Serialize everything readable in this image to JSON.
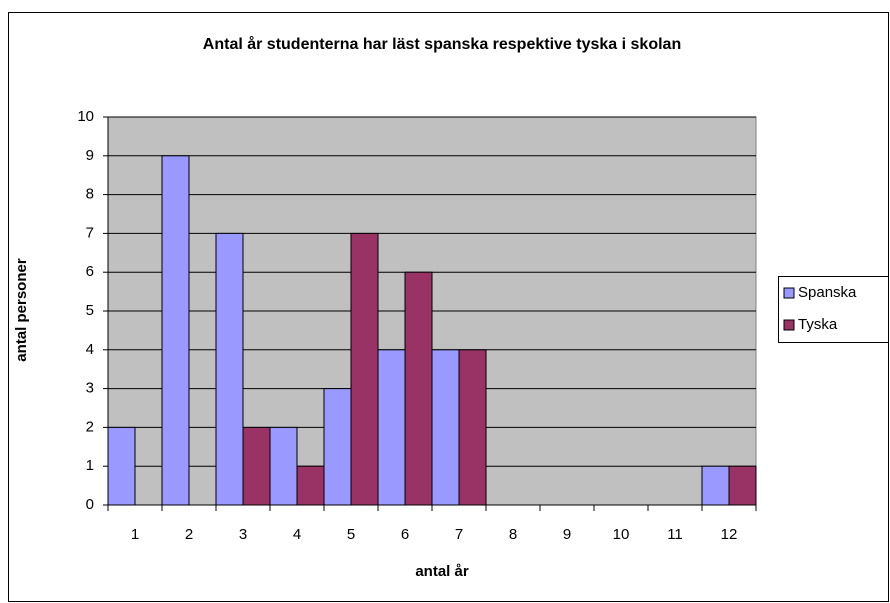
{
  "chart_data": {
    "type": "bar",
    "title": "Antal år studenterna har läst spanska respektive tyska i skolan",
    "xlabel": "antal år",
    "ylabel": "antal personer",
    "categories": [
      "1",
      "2",
      "3",
      "4",
      "5",
      "6",
      "7",
      "8",
      "9",
      "10",
      "11",
      "12"
    ],
    "series": [
      {
        "name": "Spanska",
        "color": "#9999ff",
        "values": [
          2,
          9,
          7,
          2,
          3,
          4,
          4,
          0,
          0,
          0,
          0,
          1
        ]
      },
      {
        "name": "Tyska",
        "color": "#993366",
        "values": [
          0,
          0,
          2,
          1,
          7,
          6,
          4,
          0,
          0,
          0,
          0,
          1
        ]
      }
    ],
    "ylim": [
      0,
      10
    ],
    "yticks": [
      0,
      1,
      2,
      3,
      4,
      5,
      6,
      7,
      8,
      9,
      10
    ],
    "grid": true,
    "legend": "right"
  }
}
